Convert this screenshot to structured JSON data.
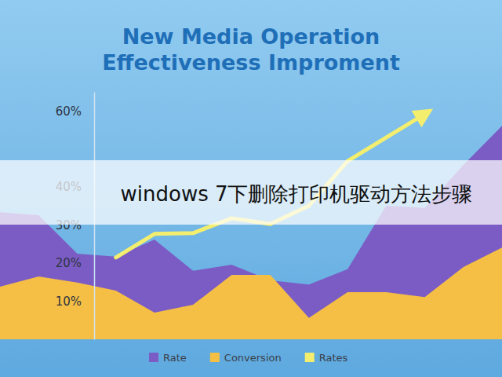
{
  "chart_data": {
    "type": "area",
    "title": "New Media Operation\nEffectiveness Improment",
    "annotation": "windows 7下删除打印机驱动方法步骤",
    "categories": [
      null,
      null,
      null,
      null,
      null,
      null,
      null,
      null,
      null,
      null,
      null,
      null,
      null,
      null
    ],
    "series": [
      {
        "name": "Rate",
        "type": "area",
        "color": "#7b5cc4",
        "values": [
          33.4,
          32.6,
          22.5,
          21.7,
          26.2,
          18.0,
          19.6,
          15.5,
          14.4,
          18.4,
          35.1,
          34.5,
          45.8,
          56.1
        ]
      },
      {
        "name": "Conversion",
        "type": "area",
        "color": "#f5bf45",
        "values": [
          13.8,
          16.5,
          14.9,
          12.8,
          7.0,
          9.1,
          16.9,
          16.9,
          5.6,
          12.4,
          12.4,
          11.1,
          19.0,
          24.1
        ]
      },
      {
        "name": "Rates",
        "type": "line",
        "color": "#f3ee6e",
        "values": [
          null,
          null,
          null,
          21.5,
          27.7,
          27.9,
          31.8,
          30.3,
          35.1,
          46.8,
          53.0,
          59.2,
          null,
          null
        ]
      }
    ],
    "ylim": [
      0,
      65
    ],
    "yticks": [
      {
        "value": 10,
        "label": "10%"
      },
      {
        "value": 20,
        "label": "20%"
      },
      {
        "value": 30,
        "label": "30%"
      },
      {
        "value": 40,
        "label": "40%"
      },
      {
        "value": 60,
        "label": "60%"
      }
    ],
    "tick_labels": "y",
    "legend": "bottom"
  }
}
